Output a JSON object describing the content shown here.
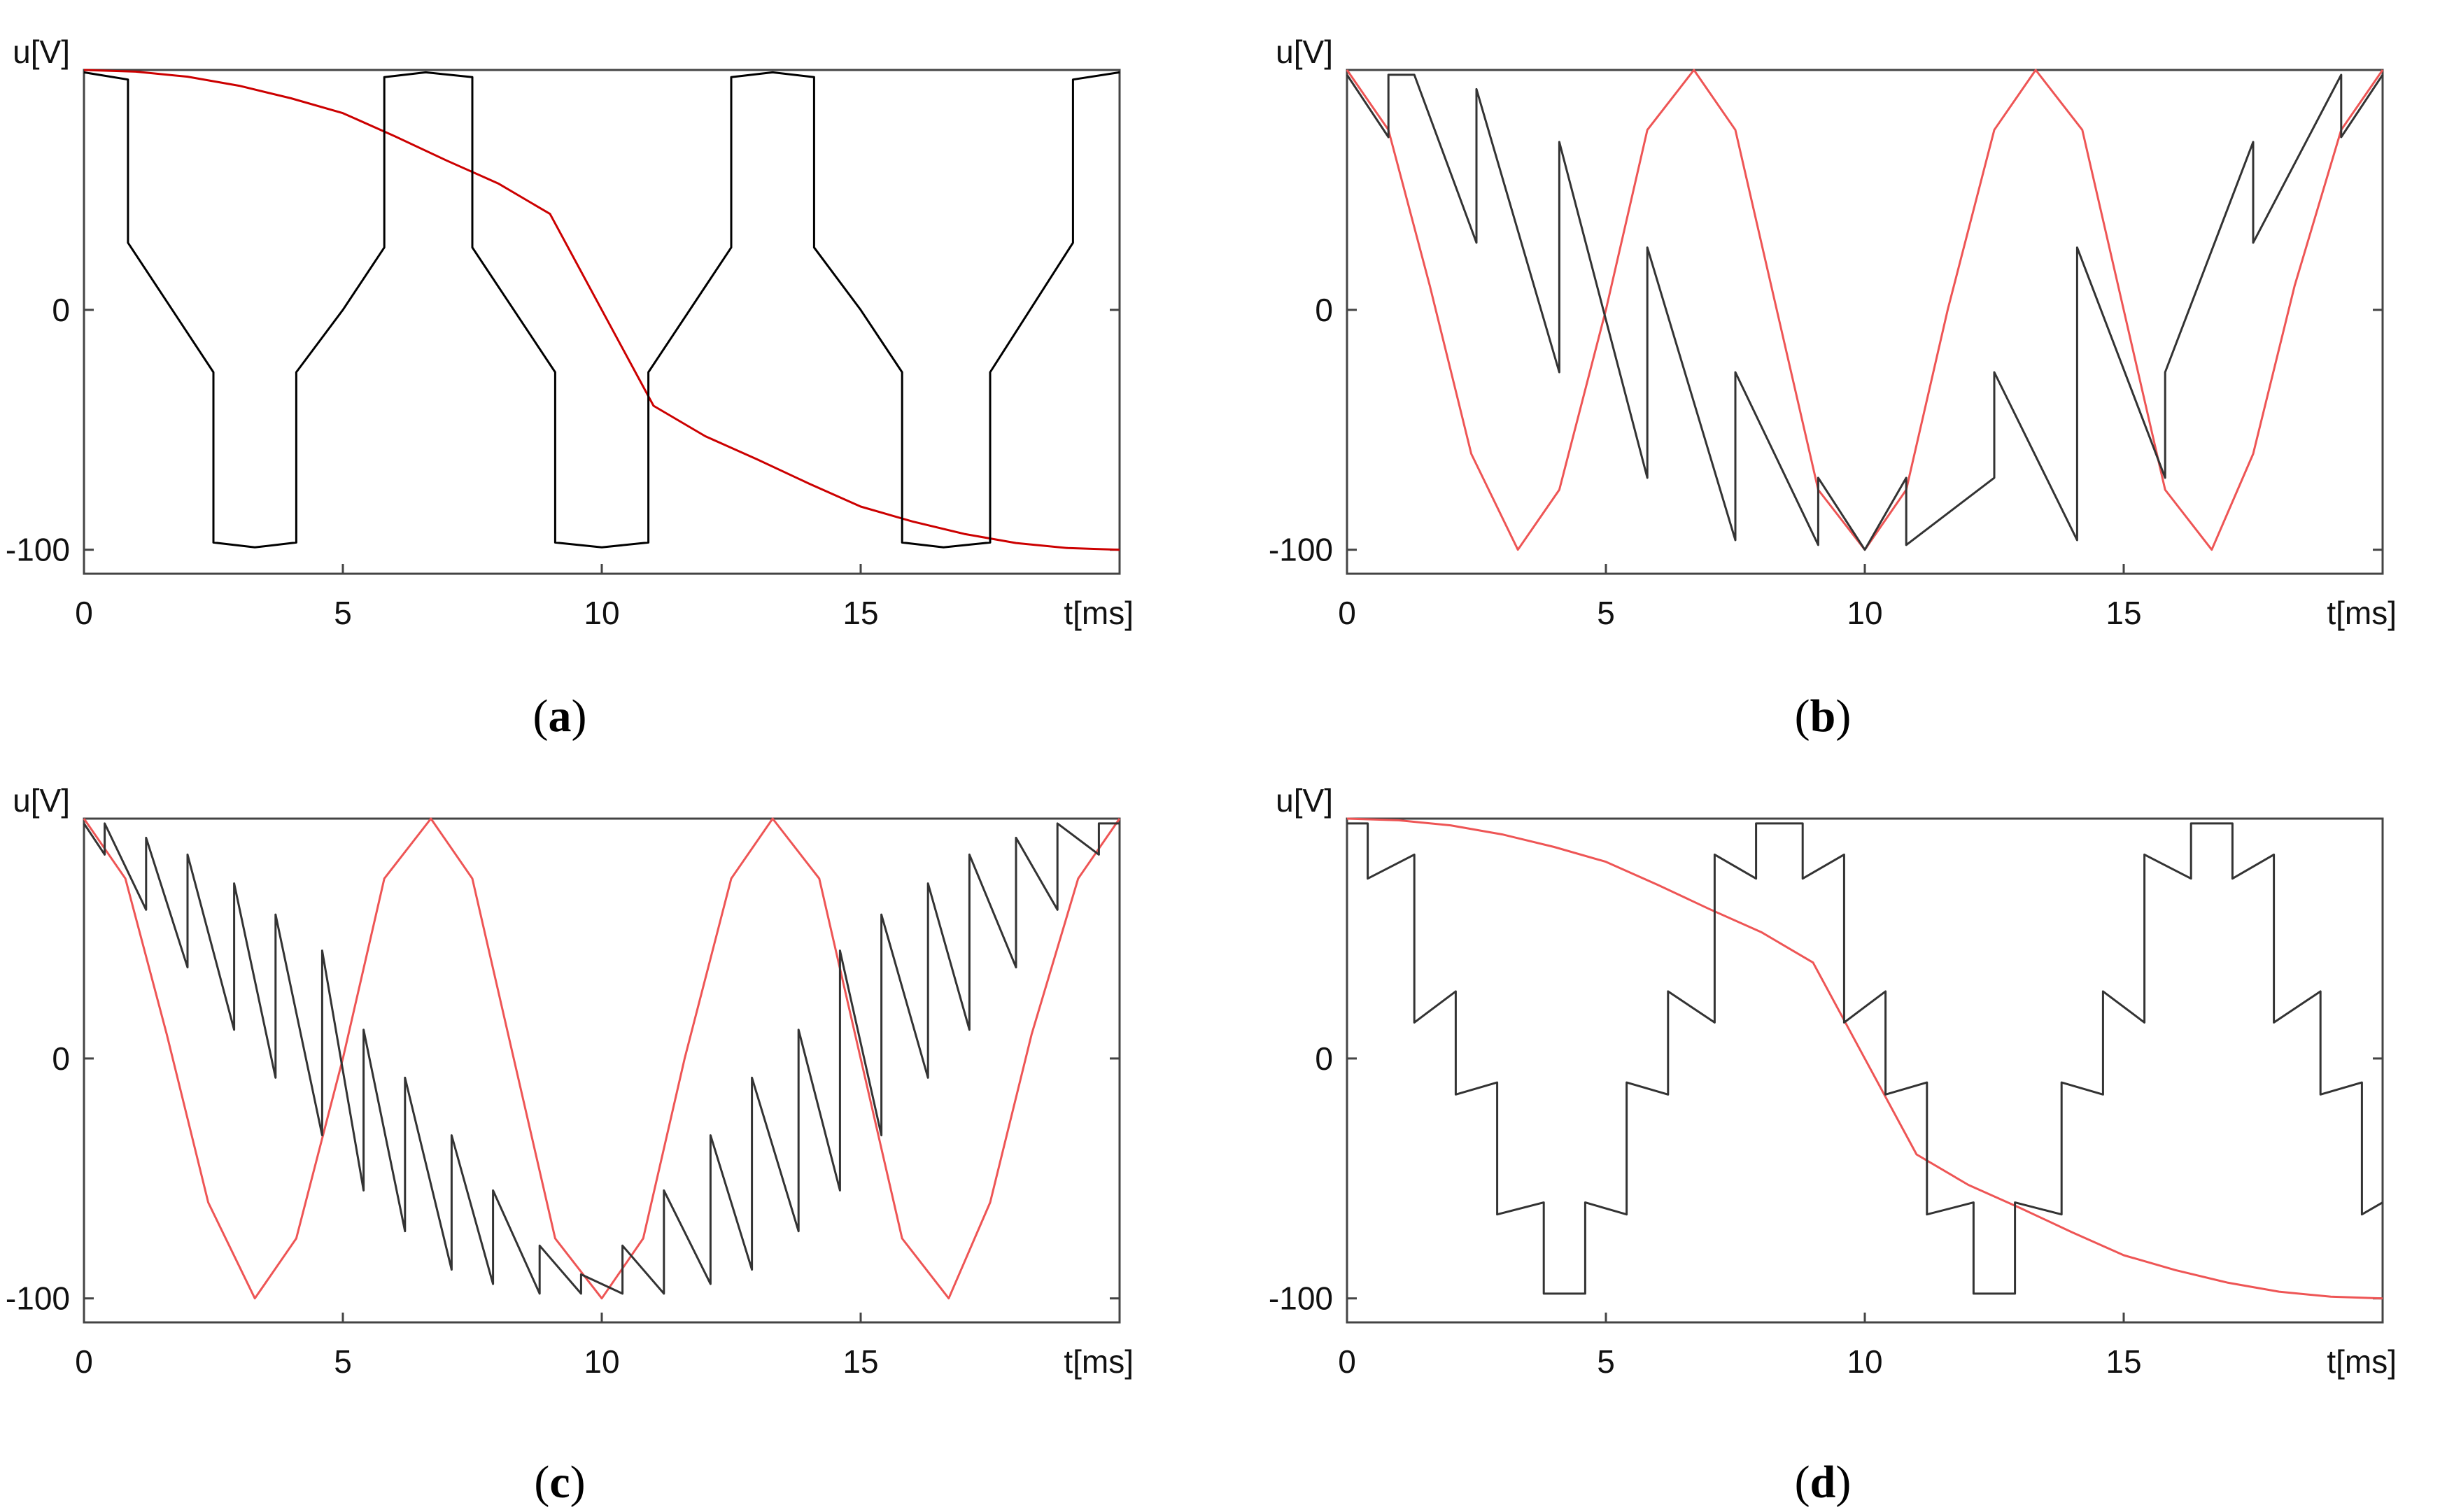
{
  "chart_data": [
    {
      "panel_label": "a",
      "type": "line",
      "xlabel": "t[ms]",
      "ylabel": "u[V]",
      "xlim": [
        0,
        20
      ],
      "ylim": [
        -110,
        100
      ],
      "xticks": [
        "0",
        "5",
        "10",
        "15"
      ],
      "yticks": [
        "-100",
        "0"
      ],
      "series": [
        {
          "color": "#cc0000",
          "x": [
            0,
            1,
            2,
            3,
            4,
            5,
            6,
            7,
            8,
            9,
            10,
            11,
            12,
            13,
            14,
            15,
            16,
            17,
            18,
            19,
            20
          ],
          "y": [
            100,
            99.3,
            97.2,
            93.4,
            88.2,
            82.0,
            72.4,
            62.3,
            52.7,
            40.0,
            0,
            -40.0,
            -52.7,
            -62.3,
            -72.4,
            -82.0,
            -88.2,
            -93.4,
            -97.2,
            -99.3,
            -100
          ]
        },
        {
          "color": "#000000",
          "x": [
            0,
            0.85,
            0.85,
            2.5,
            2.5,
            3.3,
            4.1,
            4.1,
            5.0,
            5.8,
            5.8,
            6.6,
            7.5,
            7.5,
            9.1,
            9.1,
            10.0,
            10.9,
            10.9,
            12.5,
            12.5,
            13.3,
            14.1,
            14.1,
            15.0,
            15.8,
            15.8,
            16.6,
            17.5,
            17.5,
            19.1,
            19.1,
            20
          ],
          "y": [
            99,
            96,
            28,
            -26,
            -97,
            -99,
            -97,
            -26,
            0,
            26,
            97,
            99,
            97,
            26,
            -26,
            -97,
            -99,
            -97,
            -26,
            26,
            97,
            99,
            97,
            26,
            0,
            -26,
            -97,
            -99,
            -97,
            -26,
            28,
            96,
            99
          ]
        }
      ]
    },
    {
      "panel_label": "b",
      "type": "line",
      "xlabel": "t[ms]",
      "ylabel": "u[V]",
      "xlim": [
        0,
        20
      ],
      "ylim": [
        -110,
        100
      ],
      "xticks": [
        "0",
        "5",
        "10",
        "15"
      ],
      "yticks": [
        "-100",
        "0"
      ],
      "series": [
        {
          "color": "#ee5555",
          "x": [
            0,
            0.8,
            1.6,
            2.4,
            3.3,
            4.1,
            5.0,
            5.8,
            6.7,
            7.5,
            8.3,
            9.1,
            10.0,
            10.8,
            11.6,
            12.5,
            13.3,
            14.2,
            15.0,
            15.8,
            16.7,
            17.5,
            18.3,
            19.2,
            20
          ],
          "y": [
            100,
            75,
            10,
            -60,
            -100,
            -75,
            0,
            75,
            100,
            75,
            0,
            -75,
            -100,
            -75,
            0,
            75,
            100,
            75,
            0,
            -75,
            -100,
            -60,
            10,
            75,
            100
          ]
        },
        {
          "color": "#333333",
          "x": [
            0,
            0.8,
            0.8,
            1.3,
            2.5,
            2.5,
            4.1,
            4.1,
            5.8,
            5.8,
            7.5,
            7.5,
            9.1,
            9.1,
            10.0,
            10.8,
            10.8,
            12.5,
            12.5,
            14.1,
            14.1,
            15.8,
            15.8,
            17.5,
            17.5,
            19.2,
            19.2,
            20
          ],
          "y": [
            98,
            72,
            98,
            98,
            28,
            92,
            -26,
            70,
            -70,
            26,
            -96,
            -26,
            -98,
            -70,
            -100,
            -70,
            -98,
            -70,
            -26,
            -96,
            26,
            -70,
            -26,
            70,
            28,
            98,
            72,
            98
          ]
        }
      ]
    },
    {
      "panel_label": "c",
      "type": "line",
      "xlabel": "t[ms]",
      "ylabel": "u[V]",
      "xlim": [
        0,
        20
      ],
      "ylim": [
        -110,
        100
      ],
      "xticks": [
        "0",
        "5",
        "10",
        "15"
      ],
      "yticks": [
        "-100",
        "0"
      ],
      "series": [
        {
          "color": "#ee5555",
          "x": [
            0,
            0.8,
            1.6,
            2.4,
            3.3,
            4.1,
            5.0,
            5.8,
            6.7,
            7.5,
            8.3,
            9.1,
            10.0,
            10.8,
            11.6,
            12.5,
            13.3,
            14.2,
            15.0,
            15.8,
            16.7,
            17.5,
            18.3,
            19.2,
            20
          ],
          "y": [
            100,
            75,
            10,
            -60,
            -100,
            -75,
            0,
            75,
            100,
            75,
            0,
            -75,
            -100,
            -75,
            0,
            75,
            100,
            75,
            0,
            -75,
            -100,
            -60,
            10,
            75,
            100
          ]
        },
        {
          "color": "#333333",
          "x": [
            0,
            0.4,
            0.4,
            1.2,
            1.2,
            2.0,
            2.0,
            2.9,
            2.9,
            3.7,
            3.7,
            4.6,
            4.6,
            5.4,
            5.4,
            6.2,
            6.2,
            7.1,
            7.1,
            7.9,
            7.9,
            8.8,
            8.8,
            9.6,
            9.6,
            10.4,
            10.4,
            11.2,
            11.2,
            12.1,
            12.1,
            12.9,
            12.9,
            13.8,
            13.8,
            14.6,
            14.6,
            15.4,
            15.4,
            16.3,
            16.3,
            17.1,
            17.1,
            18.0,
            18.0,
            18.8,
            18.8,
            19.6,
            19.6,
            20
          ],
          "y": [
            98,
            85,
            98,
            62,
            92,
            38,
            85,
            12,
            73,
            -8,
            60,
            -32,
            45,
            -55,
            12,
            -72,
            -8,
            -88,
            -32,
            -94,
            -55,
            -98,
            -78,
            -98,
            -90,
            -98,
            -78,
            -98,
            -55,
            -94,
            -32,
            -88,
            -8,
            -72,
            12,
            -55,
            45,
            -32,
            60,
            -8,
            73,
            12,
            85,
            38,
            92,
            62,
            98,
            85,
            98,
            98
          ]
        }
      ]
    },
    {
      "panel_label": "d",
      "type": "line",
      "xlabel": "t[ms]",
      "ylabel": "u[V]",
      "xlim": [
        0,
        20
      ],
      "ylim": [
        -110,
        100
      ],
      "xticks": [
        "0",
        "5",
        "10",
        "15"
      ],
      "yticks": [
        "-100",
        "0"
      ],
      "series": [
        {
          "color": "#ee5555",
          "x": [
            0,
            1,
            2,
            3,
            4,
            5,
            6,
            7,
            8,
            9,
            10,
            11,
            12,
            13,
            14,
            15,
            16,
            17,
            18,
            19,
            20
          ],
          "y": [
            100,
            99.3,
            97.2,
            93.4,
            88.2,
            82.0,
            72.4,
            62.3,
            52.7,
            40.0,
            0,
            -40.0,
            -52.7,
            -62.3,
            -72.4,
            -82.0,
            -88.2,
            -93.4,
            -97.2,
            -99.3,
            -100
          ]
        },
        {
          "color": "#333333",
          "x": [
            0,
            0.4,
            0.4,
            1.3,
            1.3,
            2.1,
            2.1,
            2.9,
            2.9,
            3.8,
            3.8,
            4.6,
            4.6,
            5.4,
            5.4,
            6.2,
            6.2,
            7.1,
            7.1,
            7.9,
            7.9,
            8.8,
            8.8,
            9.6,
            9.6,
            10.4,
            10.4,
            11.2,
            11.2,
            12.1,
            12.1,
            12.9,
            12.9,
            13.8,
            13.8,
            14.6,
            14.6,
            15.4,
            15.4,
            16.3,
            16.3,
            17.1,
            17.1,
            17.9,
            17.9,
            18.8,
            18.8,
            19.6,
            19.6,
            20
          ],
          "y": [
            98,
            98,
            75,
            85,
            15,
            28,
            -15,
            -10,
            -65,
            -60,
            -98,
            -98,
            -60,
            -65,
            -10,
            -15,
            28,
            15,
            85,
            75,
            98,
            98,
            75,
            85,
            15,
            28,
            -15,
            -10,
            -65,
            -60,
            -98,
            -98,
            -60,
            -65,
            -10,
            -15,
            28,
            15,
            85,
            75,
            98,
            98,
            75,
            85,
            15,
            28,
            -15,
            -10,
            -65,
            -60
          ]
        }
      ]
    }
  ]
}
